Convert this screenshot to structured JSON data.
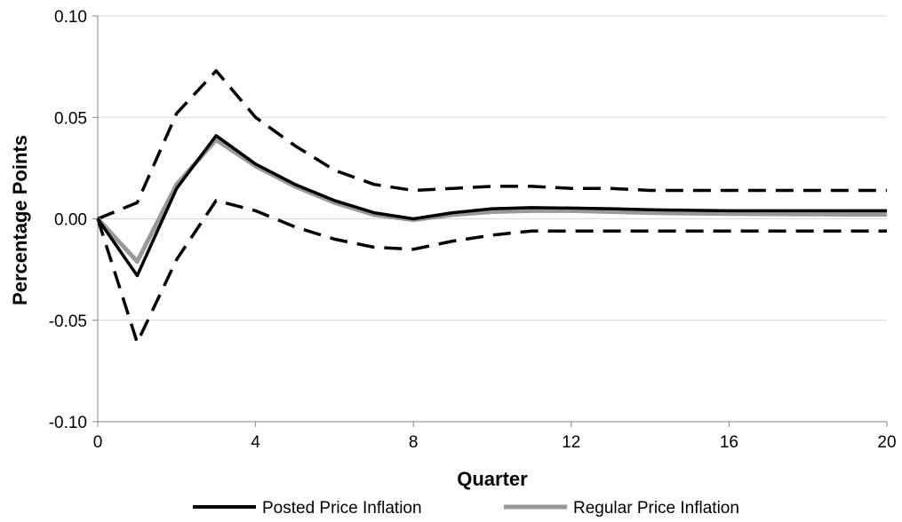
{
  "chart_data": {
    "type": "line",
    "title": "",
    "xlabel": "Quarter",
    "ylabel": "Percentage Points",
    "xlim": [
      0,
      20
    ],
    "ylim": [
      -0.1,
      0.1
    ],
    "x_ticks": [
      0,
      4,
      8,
      12,
      16,
      20
    ],
    "x_tick_labels": [
      "0",
      "4",
      "8",
      "12",
      "16",
      "20"
    ],
    "y_ticks": [
      0.1,
      0.05,
      0.0,
      -0.05,
      -0.1
    ],
    "y_tick_labels": [
      "0.10",
      "0.05",
      "0.00",
      "-0.05",
      "-0.10"
    ],
    "grid": "horizontal",
    "legend_position": "bottom",
    "x": [
      0,
      1,
      2,
      3,
      4,
      5,
      6,
      7,
      8,
      9,
      10,
      11,
      12,
      13,
      14,
      15,
      16,
      17,
      18,
      19,
      20
    ],
    "series": [
      {
        "name": "Posted Price Inflation",
        "color": "#000000",
        "style": "solid",
        "in_legend": true,
        "values": [
          0.0,
          -0.028,
          0.015,
          0.041,
          0.027,
          0.017,
          0.009,
          0.003,
          0.0,
          0.003,
          0.005,
          0.0055,
          0.0053,
          0.005,
          0.0045,
          0.0042,
          0.004,
          0.004,
          0.004,
          0.004,
          0.004
        ]
      },
      {
        "name": "Regular Price Inflation",
        "color": "#999999",
        "style": "solid",
        "in_legend": true,
        "values": [
          0.0,
          -0.021,
          0.017,
          0.039,
          0.026,
          0.016,
          0.008,
          0.002,
          -0.0005,
          0.002,
          0.0035,
          0.004,
          0.004,
          0.0035,
          0.003,
          0.0027,
          0.0025,
          0.0024,
          0.0023,
          0.0022,
          0.0022
        ]
      },
      {
        "color": "#000000",
        "style": "dashed",
        "in_legend": false,
        "values": [
          0.0,
          0.008,
          0.052,
          0.073,
          0.05,
          0.036,
          0.024,
          0.017,
          0.014,
          0.015,
          0.016,
          0.016,
          0.015,
          0.015,
          0.014,
          0.014,
          0.014,
          0.014,
          0.014,
          0.014,
          0.014
        ]
      },
      {
        "color": "#000000",
        "style": "dashed",
        "in_legend": false,
        "values": [
          0.0,
          -0.061,
          -0.02,
          0.009,
          0.004,
          -0.004,
          -0.01,
          -0.014,
          -0.015,
          -0.011,
          -0.008,
          -0.006,
          -0.006,
          -0.006,
          -0.006,
          -0.006,
          -0.006,
          -0.006,
          -0.006,
          -0.006,
          -0.006
        ]
      }
    ]
  }
}
